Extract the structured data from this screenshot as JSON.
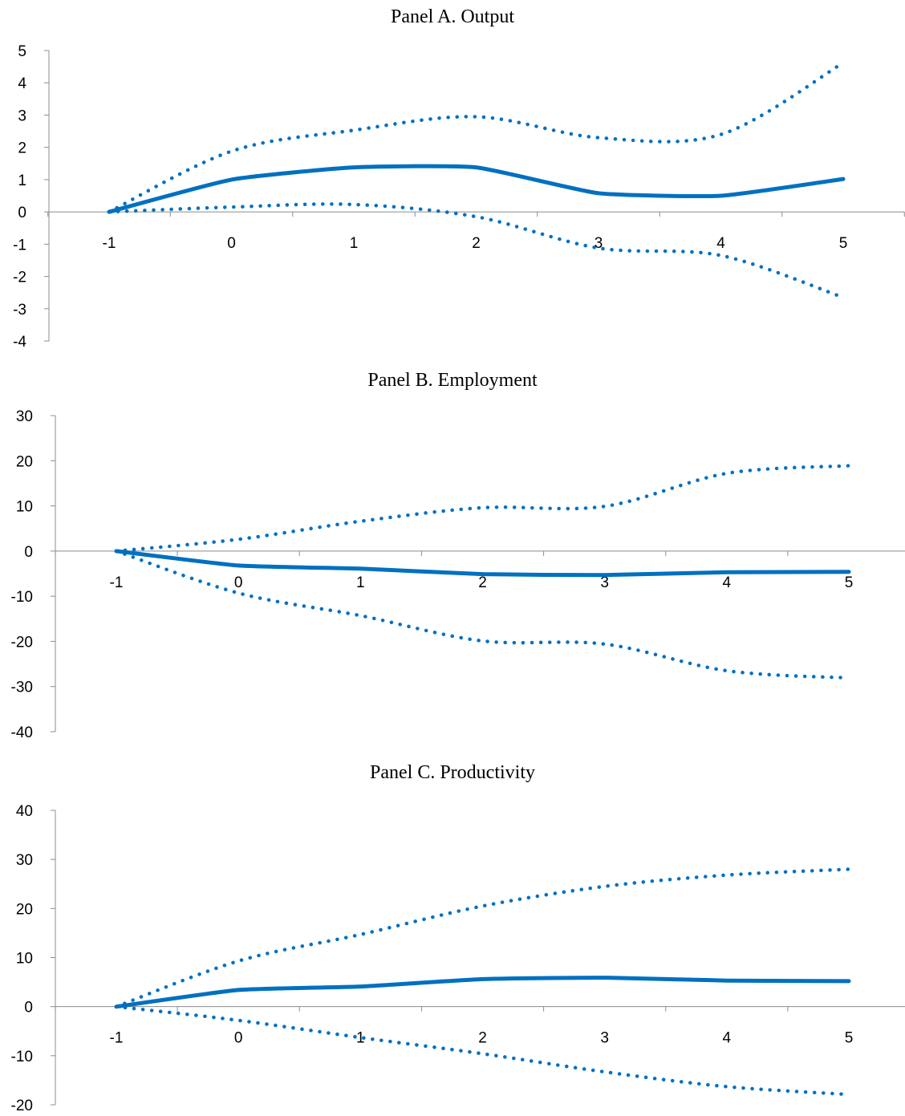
{
  "colors": {
    "series": "#0070C0",
    "axis": "#8C8C8C",
    "text": "#000000"
  },
  "chart_data": [
    {
      "type": "line",
      "title": "Panel A. Output",
      "xlabel": "",
      "ylabel": "",
      "x": [
        -1,
        0,
        1,
        2,
        3,
        4,
        5
      ],
      "x_tick_labels": [
        "-1",
        "0",
        "1",
        "2",
        "3",
        "4",
        "5"
      ],
      "ylim": [
        -4,
        5
      ],
      "y_ticks": [
        5,
        4,
        3,
        2,
        1,
        0,
        -1,
        -2,
        -3,
        -4
      ],
      "y_tick_labels": [
        "5",
        "4",
        "3",
        "2",
        "1",
        "0",
        "-1",
        "-2",
        "-3",
        "-4"
      ],
      "grid": false,
      "legend": "none",
      "series": [
        {
          "style": "solid",
          "values": [
            0,
            1.0,
            1.38,
            1.38,
            0.58,
            0.5,
            1.02
          ]
        },
        {
          "style": "dotted",
          "values": [
            0,
            1.88,
            2.53,
            2.95,
            2.3,
            2.4,
            4.62
          ]
        },
        {
          "style": "dotted",
          "values": [
            0,
            0.15,
            0.23,
            -0.15,
            -1.12,
            -1.35,
            -2.65
          ]
        }
      ]
    },
    {
      "type": "line",
      "title": "Panel B. Employment",
      "xlabel": "",
      "ylabel": "",
      "x": [
        -1,
        0,
        1,
        2,
        3,
        4,
        5
      ],
      "x_tick_labels": [
        "-1",
        "0",
        "1",
        "2",
        "3",
        "4",
        "5"
      ],
      "ylim": [
        -40,
        30
      ],
      "y_ticks": [
        30,
        20,
        10,
        0,
        -10,
        -20,
        -30,
        -40
      ],
      "y_tick_labels": [
        "30",
        "20",
        "10",
        "0",
        "-10",
        "-20",
        "-30",
        "-40"
      ],
      "grid": false,
      "legend": "none",
      "series": [
        {
          "style": "solid",
          "values": [
            0,
            -3.2,
            -3.9,
            -5.1,
            -5.3,
            -4.7,
            -4.6
          ]
        },
        {
          "style": "dotted",
          "values": [
            0,
            2.6,
            6.6,
            9.6,
            9.9,
            17.2,
            18.9
          ]
        },
        {
          "style": "dotted",
          "values": [
            0,
            -9.3,
            -14.3,
            -19.9,
            -20.6,
            -26.5,
            -28.1
          ]
        }
      ]
    },
    {
      "type": "line",
      "title": "Panel C. Productivity",
      "xlabel": "",
      "ylabel": "",
      "x": [
        -1,
        0,
        1,
        2,
        3,
        4,
        5
      ],
      "x_tick_labels": [
        "-1",
        "0",
        "1",
        "2",
        "3",
        "4",
        "5"
      ],
      "ylim": [
        -20,
        40
      ],
      "y_ticks": [
        40,
        30,
        20,
        10,
        0,
        -10,
        -20
      ],
      "y_tick_labels": [
        "40",
        "30",
        "20",
        "10",
        "0",
        "-10",
        "-20"
      ],
      "grid": false,
      "legend": "none",
      "series": [
        {
          "style": "solid",
          "values": [
            0,
            3.4,
            4.1,
            5.6,
            5.9,
            5.3,
            5.2
          ]
        },
        {
          "style": "dotted",
          "values": [
            0,
            9.3,
            14.7,
            20.5,
            24.5,
            26.8,
            28.0
          ]
        },
        {
          "style": "dotted",
          "values": [
            0,
            -2.8,
            -6.3,
            -9.6,
            -13.3,
            -16.3,
            -17.9
          ]
        }
      ]
    }
  ]
}
